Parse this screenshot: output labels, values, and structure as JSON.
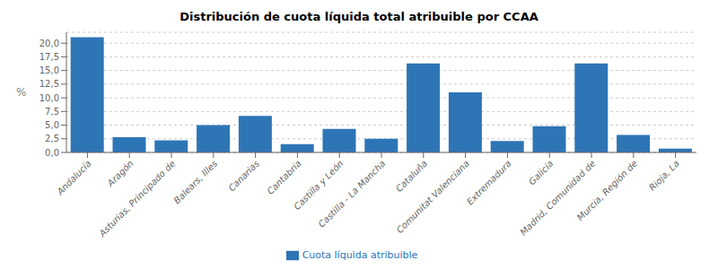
{
  "chart_data": {
    "type": "bar",
    "title": "Distribución de cuota líquida total atribuible por CCAA",
    "categories": [
      "Andalucía",
      "Aragón",
      "Asturias, Principado de",
      "Balears, Illes",
      "Canarias",
      "Cantabria",
      "Castilla y León",
      "Castilla - La Mancha",
      "Cataluña",
      "Comunitat Valenciana",
      "Extremadura",
      "Galicia",
      "Madrid, Comunidad de",
      "Murcia, Región de",
      "Rioja, La"
    ],
    "values": [
      21.1,
      2.8,
      2.2,
      5.0,
      6.7,
      1.5,
      4.3,
      2.5,
      16.3,
      11.0,
      2.1,
      4.8,
      16.3,
      3.2,
      0.7
    ],
    "series_name": "Cuota líquida atribuible",
    "color": "#2e75b6",
    "ylabel": "%",
    "ylim": [
      0,
      22
    ],
    "yticks": [
      {
        "value": 0.0,
        "label": "0,0"
      },
      {
        "value": 2.5,
        "label": "2,5"
      },
      {
        "value": 5.0,
        "label": "5,0"
      },
      {
        "value": 7.5,
        "label": "7,5"
      },
      {
        "value": 10.0,
        "label": "10,0"
      },
      {
        "value": 12.5,
        "label": "12,5"
      },
      {
        "value": 15.0,
        "label": "15,0"
      },
      {
        "value": 17.5,
        "label": "17,5"
      },
      {
        "value": 20.0,
        "label": "20,0"
      }
    ],
    "grid": true,
    "legend": "bottom"
  }
}
